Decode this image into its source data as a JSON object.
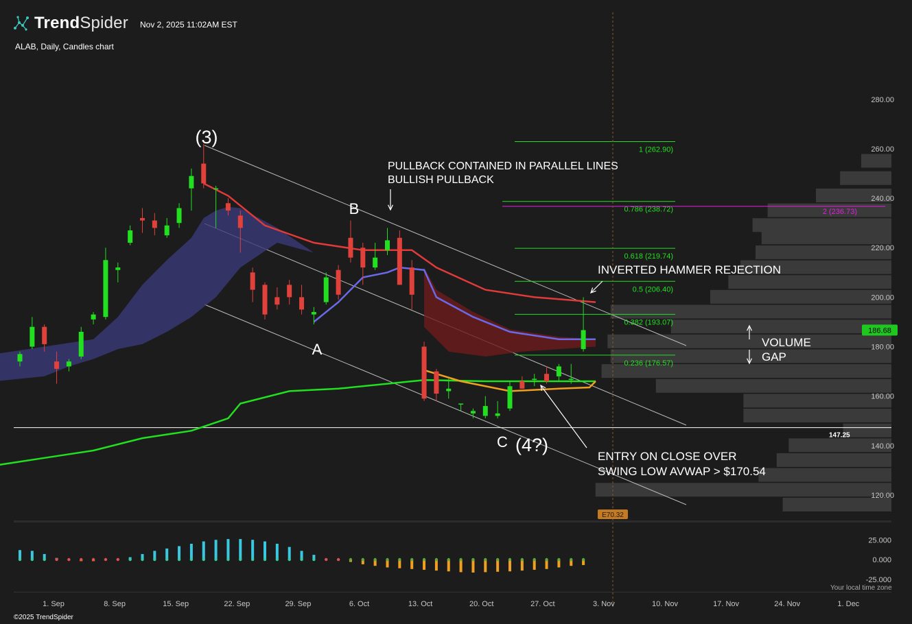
{
  "header": {
    "brand_bold": "Trend",
    "brand_light": "Spider",
    "timestamp": "Nov 2, 2025 11:02AM EST",
    "subtitle": "ALAB, Daily, Candles chart"
  },
  "footer": {
    "copyright": "©2025 TrendSpider",
    "timezone_note": "Your local time zone"
  },
  "colors": {
    "background": "#1c1c1c",
    "up_candle": "#22e01f",
    "down_candle": "#e0413a",
    "fib_line": "#22e01f",
    "target_line": "#e020e0",
    "ema_red": "#e03a3a",
    "ma_blue": "#6a6ae8",
    "ma_green": "#22e01f",
    "avwap_orange": "#f0a020",
    "hist_positive": "#3ac8e0",
    "hist_negative": "#f0a020"
  },
  "chart_data": {
    "type": "candlestick",
    "symbol": "ALAB",
    "interval": "Daily",
    "ylim": [
      110,
      300
    ],
    "y_ticks": [
      "280.00",
      "260.00",
      "240.00",
      "220.00",
      "200.00",
      "180.00",
      "160.00",
      "140.00",
      "120.00"
    ],
    "x_ticks": [
      "1. Sep",
      "8. Sep",
      "15. Sep",
      "22. Sep",
      "29. Sep",
      "6. Oct",
      "13. Oct",
      "20. Oct",
      "27. Oct",
      "3. Nov",
      "10. Nov",
      "17. Nov",
      "24. Nov",
      "1. Dec"
    ],
    "candles": [
      {
        "date": "Aug 27",
        "o": 174,
        "h": 178,
        "l": 172,
        "c": 177
      },
      {
        "date": "Aug 28",
        "o": 180,
        "h": 192,
        "l": 179,
        "c": 188
      },
      {
        "date": "Aug 29",
        "o": 188,
        "h": 189,
        "l": 178,
        "c": 181
      },
      {
        "date": "Sep 2",
        "o": 174,
        "h": 178,
        "l": 165,
        "c": 171
      },
      {
        "date": "Sep 3",
        "o": 172,
        "h": 175,
        "l": 170,
        "c": 174
      },
      {
        "date": "Sep 4",
        "o": 176,
        "h": 188,
        "l": 175,
        "c": 186
      },
      {
        "date": "Sep 5",
        "o": 191,
        "h": 194,
        "l": 189,
        "c": 193
      },
      {
        "date": "Sep 8",
        "o": 192,
        "h": 220,
        "l": 191,
        "c": 215
      },
      {
        "date": "Sep 9",
        "o": 211,
        "h": 214,
        "l": 206,
        "c": 212
      },
      {
        "date": "Sep 10",
        "o": 222,
        "h": 229,
        "l": 221,
        "c": 227
      },
      {
        "date": "Sep 11",
        "o": 232,
        "h": 236,
        "l": 226,
        "c": 231
      },
      {
        "date": "Sep 12",
        "o": 231,
        "h": 234,
        "l": 225,
        "c": 228
      },
      {
        "date": "Sep 15",
        "o": 225,
        "h": 232,
        "l": 224,
        "c": 229
      },
      {
        "date": "Sep 16",
        "o": 230,
        "h": 238,
        "l": 228,
        "c": 236
      },
      {
        "date": "Sep 17",
        "o": 244,
        "h": 252,
        "l": 235,
        "c": 249
      },
      {
        "date": "Sep 18",
        "o": 254,
        "h": 262,
        "l": 244,
        "c": 246
      },
      {
        "date": "Sep 19",
        "o": 244,
        "h": 245,
        "l": 228,
        "c": 244
      },
      {
        "date": "Sep 22",
        "o": 238,
        "h": 240,
        "l": 233,
        "c": 235
      },
      {
        "date": "Sep 23",
        "o": 233,
        "h": 235,
        "l": 218,
        "c": 228
      },
      {
        "date": "Sep 24",
        "o": 210,
        "h": 212,
        "l": 198,
        "c": 203
      },
      {
        "date": "Sep 25",
        "o": 205,
        "h": 206,
        "l": 191,
        "c": 193
      },
      {
        "date": "Sep 26",
        "o": 200,
        "h": 204,
        "l": 195,
        "c": 197
      },
      {
        "date": "Sep 29",
        "o": 205,
        "h": 207,
        "l": 197,
        "c": 200
      },
      {
        "date": "Sep 30",
        "o": 200,
        "h": 205,
        "l": 193,
        "c": 195
      },
      {
        "date": "Oct 1",
        "o": 193,
        "h": 196,
        "l": 189,
        "c": 194
      },
      {
        "date": "Oct 2",
        "o": 198,
        "h": 210,
        "l": 197,
        "c": 208
      },
      {
        "date": "Oct 3",
        "o": 211,
        "h": 213,
        "l": 199,
        "c": 201
      },
      {
        "date": "Oct 6",
        "o": 224,
        "h": 231,
        "l": 214,
        "c": 216
      },
      {
        "date": "Oct 7",
        "o": 220,
        "h": 222,
        "l": 205,
        "c": 212
      },
      {
        "date": "Oct 8",
        "o": 212,
        "h": 222,
        "l": 211,
        "c": 216
      },
      {
        "date": "Oct 9",
        "o": 219,
        "h": 228,
        "l": 217,
        "c": 223
      },
      {
        "date": "Oct 10",
        "o": 224,
        "h": 227,
        "l": 206,
        "c": 205
      },
      {
        "date": "Oct 13",
        "o": 212,
        "h": 215,
        "l": 195,
        "c": 201
      },
      {
        "date": "Oct 14",
        "o": 180,
        "h": 182,
        "l": 158,
        "c": 159
      },
      {
        "date": "Oct 15",
        "o": 170,
        "h": 171,
        "l": 158,
        "c": 161
      },
      {
        "date": "Oct 16",
        "o": 162,
        "h": 167,
        "l": 159,
        "c": 163
      },
      {
        "date": "Oct 17",
        "o": 157,
        "h": 157,
        "l": 154,
        "c": 157
      },
      {
        "date": "Oct 20",
        "o": 153,
        "h": 155,
        "l": 151,
        "c": 154
      },
      {
        "date": "Oct 21",
        "o": 152,
        "h": 160,
        "l": 151,
        "c": 156
      },
      {
        "date": "Oct 22",
        "o": 152,
        "h": 158,
        "l": 151,
        "c": 153
      },
      {
        "date": "Oct 23",
        "o": 155,
        "h": 166,
        "l": 154,
        "c": 164
      },
      {
        "date": "Oct 24",
        "o": 166,
        "h": 168,
        "l": 163,
        "c": 163
      },
      {
        "date": "Oct 27",
        "o": 167,
        "h": 169,
        "l": 164,
        "c": 167
      },
      {
        "date": "Oct 28",
        "o": 169,
        "h": 172,
        "l": 165,
        "c": 166
      },
      {
        "date": "Oct 29",
        "o": 168,
        "h": 173,
        "l": 166,
        "c": 172
      },
      {
        "date": "Oct 30",
        "o": 167,
        "h": 173,
        "l": 165,
        "c": 167
      },
      {
        "date": "Oct 31",
        "o": 179,
        "h": 200,
        "l": 178,
        "c": 186.68
      }
    ],
    "overlays": {
      "ema_red": [
        [
          15,
          246
        ],
        [
          17,
          241
        ],
        [
          20,
          229
        ],
        [
          24,
          222
        ],
        [
          28,
          219
        ],
        [
          32,
          219
        ],
        [
          34,
          212
        ],
        [
          38,
          203
        ],
        [
          42,
          200
        ],
        [
          47,
          198
        ]
      ],
      "ma_blue": [
        [
          24,
          190
        ],
        [
          26,
          198
        ],
        [
          28,
          208
        ],
        [
          30,
          210
        ],
        [
          31,
          212
        ],
        [
          33,
          211
        ],
        [
          34,
          200
        ],
        [
          37,
          192
        ],
        [
          40,
          186
        ],
        [
          44,
          183
        ],
        [
          47,
          183
        ]
      ],
      "ma_green": [
        [
          -2,
          132
        ],
        [
          2,
          135
        ],
        [
          6,
          138
        ],
        [
          10,
          143
        ],
        [
          14,
          146
        ],
        [
          17,
          151
        ],
        [
          18,
          157
        ],
        [
          22,
          162
        ],
        [
          26,
          163
        ],
        [
          30,
          165
        ],
        [
          33,
          166.5
        ],
        [
          38,
          166
        ],
        [
          47,
          166
        ]
      ],
      "avwap_orange": [
        [
          33,
          170.5
        ],
        [
          36,
          166
        ],
        [
          40,
          162
        ],
        [
          44,
          163
        ],
        [
          46.5,
          163.5
        ],
        [
          47,
          166
        ]
      ]
    },
    "fib_levels": [
      {
        "ratio": 1,
        "price": 262.9,
        "label": "1 (262.90)"
      },
      {
        "ratio": 0.786,
        "price": 238.72,
        "label": "0.786 (238.72)"
      },
      {
        "ratio": 0.618,
        "price": 219.74,
        "label": "0.618 (219.74)"
      },
      {
        "ratio": 0.5,
        "price": 206.4,
        "label": "0.5 (206.40)"
      },
      {
        "ratio": 0.382,
        "price": 193.07,
        "label": "0.382 (193.07)"
      },
      {
        "ratio": 0.236,
        "price": 176.57,
        "label": "0.236 (176.57)"
      }
    ],
    "target_line": {
      "price": 236.73,
      "label": "2 (236.73)"
    },
    "support_line": {
      "price": 147.25,
      "label": "147.25"
    },
    "price_tags": {
      "last_price": "186.68",
      "earnings": "E70.32"
    },
    "volume_profile": [
      {
        "price": 255,
        "width": 0.1
      },
      {
        "price": 248,
        "width": 0.17
      },
      {
        "price": 241,
        "width": 0.25
      },
      {
        "price": 235,
        "width": 0.41
      },
      {
        "price": 229,
        "width": 0.46
      },
      {
        "price": 224,
        "width": 0.43
      },
      {
        "price": 218,
        "width": 0.45
      },
      {
        "price": 212,
        "width": 0.5
      },
      {
        "price": 206,
        "width": 0.54
      },
      {
        "price": 200,
        "width": 0.6
      },
      {
        "price": 194,
        "width": 0.93
      },
      {
        "price": 188,
        "width": 0.73
      },
      {
        "price": 182,
        "width": 0.94
      },
      {
        "price": 176,
        "width": 0.93
      },
      {
        "price": 170,
        "width": 0.96
      },
      {
        "price": 164,
        "width": 0.78
      },
      {
        "price": 158,
        "width": 0.49
      },
      {
        "price": 152,
        "width": 0.49
      },
      {
        "price": 146,
        "width": 0.16
      },
      {
        "price": 140,
        "width": 0.34
      },
      {
        "price": 134,
        "width": 0.38
      },
      {
        "price": 128,
        "width": 0.44
      },
      {
        "price": 122,
        "width": 0.98
      },
      {
        "price": 116,
        "width": 0.36
      }
    ],
    "annotations": {
      "wave_3": "(3)",
      "wave_a": "A",
      "wave_b": "B",
      "wave_c": "C",
      "wave_4": "(4?)",
      "pullback_line1": "PULLBACK CONTAINED IN PARALLEL LINES",
      "pullback_line2": "BULLISH PULLBACK",
      "inverted_hammer": "INVERTED HAMMER REJECTION",
      "volume_gap_line1": "VOLUME",
      "volume_gap_line2": "GAP",
      "entry_line1": "ENTRY ON CLOSE OVER",
      "entry_line2": "SWING LOW AVWAP > $170.54"
    },
    "oscillator": {
      "y_ticks": [
        "25.000",
        "0.000",
        "-25.000"
      ],
      "ylim": [
        -40,
        30
      ],
      "values": [
        12,
        11,
        7,
        2,
        -1,
        -2,
        -2,
        -1,
        1,
        3,
        7,
        11,
        14,
        17,
        20,
        23,
        25,
        26,
        26,
        25,
        23,
        20,
        16,
        11,
        6,
        1,
        -1,
        -3,
        -6,
        -8,
        -10,
        -11,
        -12,
        -13,
        -14,
        -15,
        -16,
        -16.5,
        -16,
        -15.5,
        -15,
        -14,
        -13,
        -12,
        -10,
        -8,
        -7
      ]
    }
  }
}
